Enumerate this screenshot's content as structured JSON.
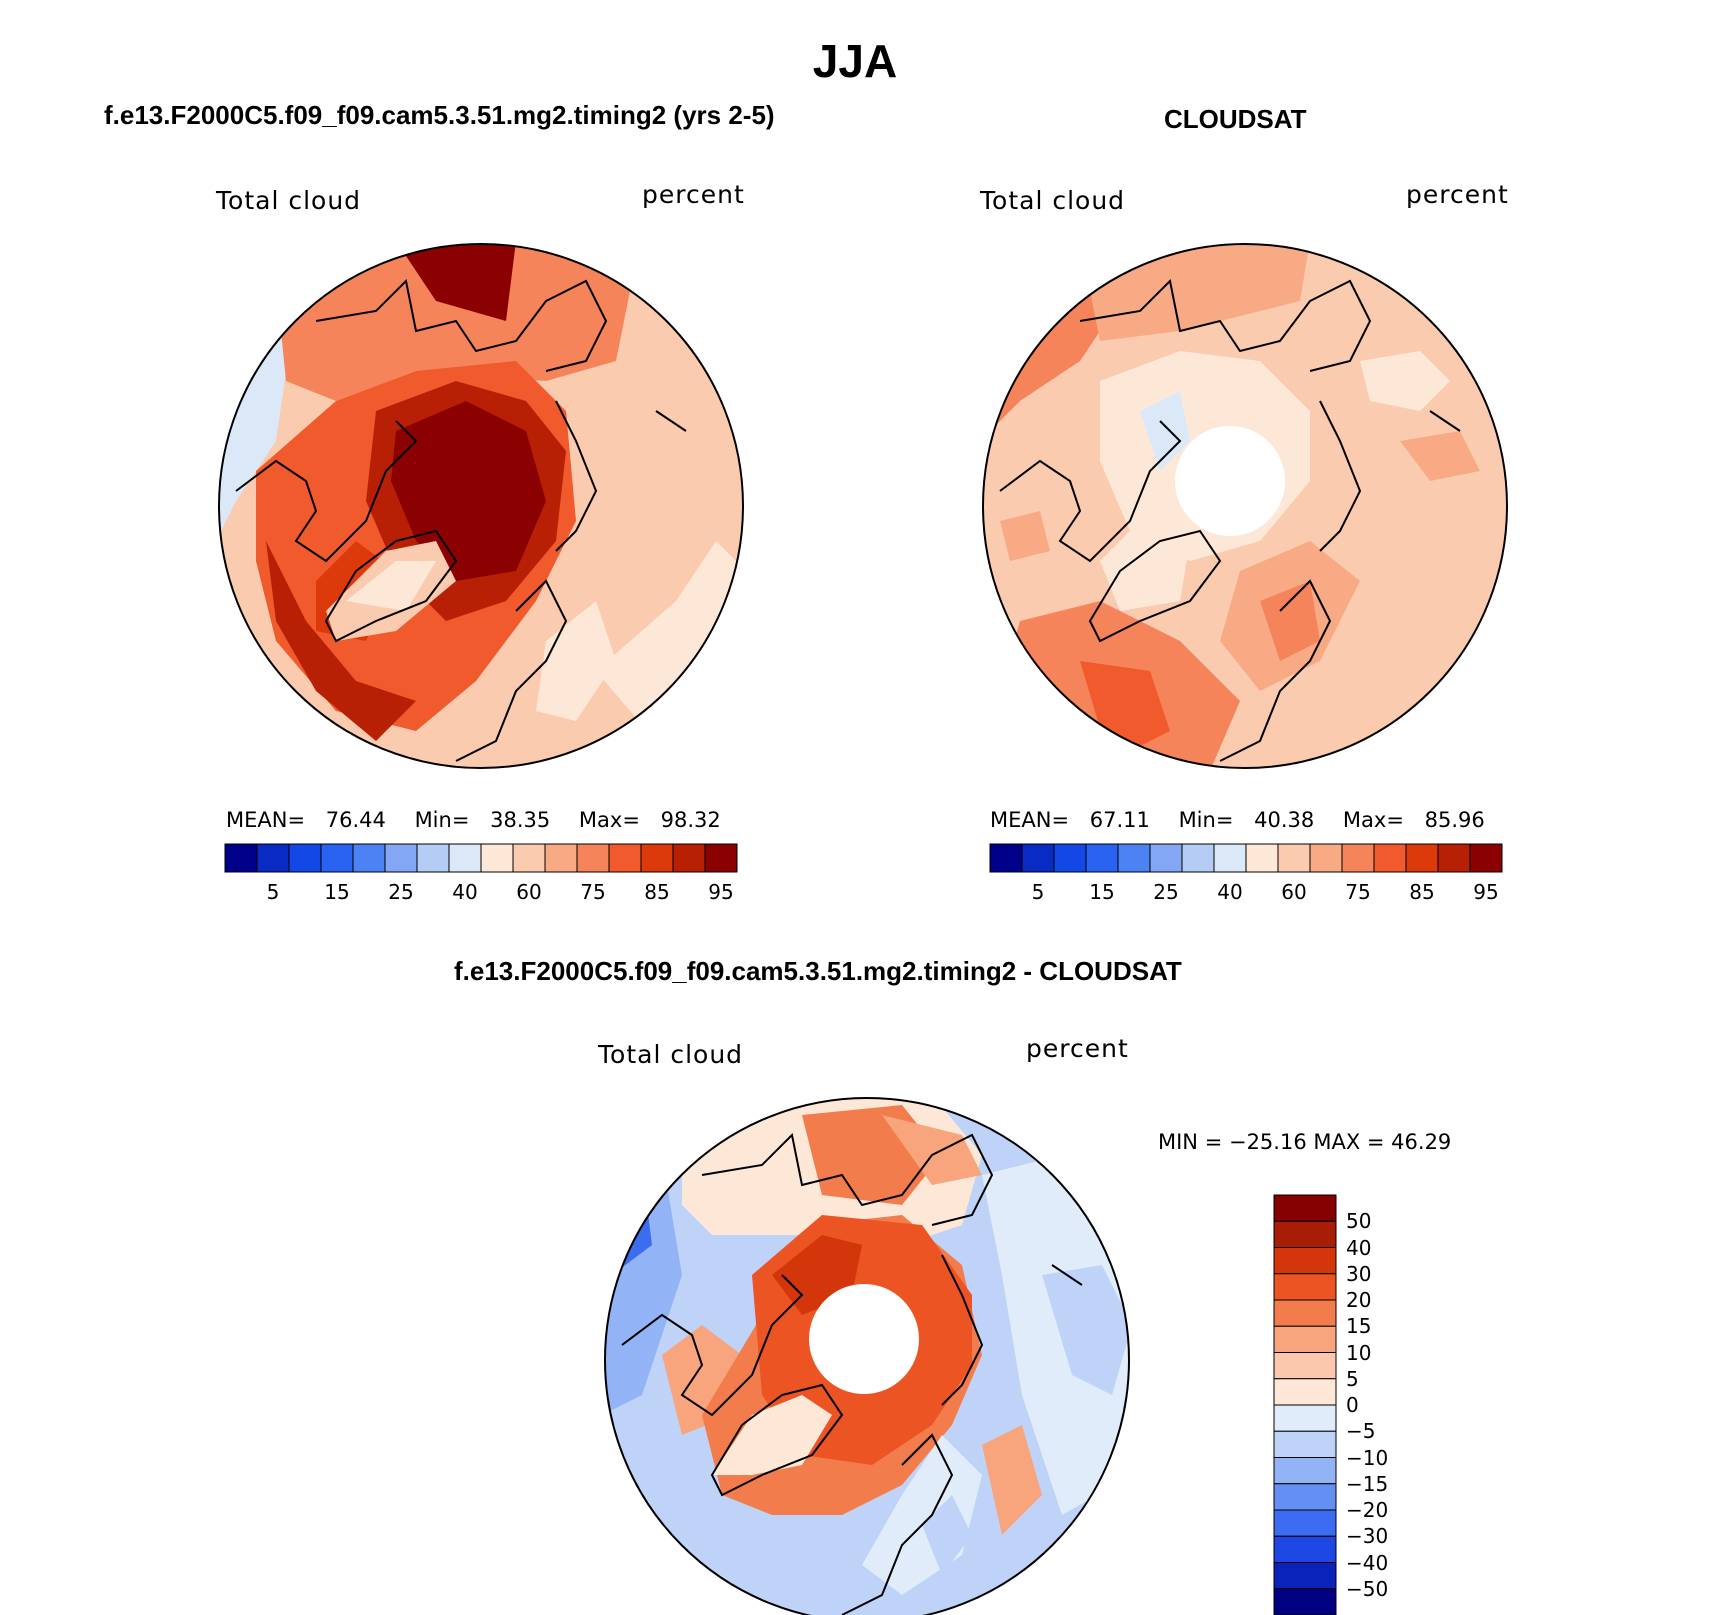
{
  "title": "JJA",
  "colors": {
    "abs_scale": [
      "#00008b",
      "#0a2ac4",
      "#1448e6",
      "#2a63f2",
      "#4d82f4",
      "#83a7f4",
      "#b5cdf5",
      "#dbe8f8",
      "#fde8d8",
      "#fbcbb0",
      "#f8aa85",
      "#f5845a",
      "#f05a2c",
      "#dd3a0c",
      "#b82006",
      "#8b0000"
    ],
    "diff_scale": [
      "#000080",
      "#0a24bb",
      "#1e48e3",
      "#3c6cf0",
      "#6490f3",
      "#92b3f5",
      "#bed3f7",
      "#e0ecf9",
      "#fde8d8",
      "#fbc8ad",
      "#f8a47c",
      "#f37c4d",
      "#ec5423",
      "#d4360b",
      "#a81d05",
      "#850000"
    ]
  },
  "panels": [
    {
      "subtitle": "f.e13.F2000C5.f09_f09.cam5.3.51.mg2.timing2 (yrs 2-5)",
      "left_label": "Total cloud",
      "right_label": "percent",
      "stats": {
        "mean_label": "MEAN=",
        "mean": "76.44",
        "min_label": "Min=",
        "min": "38.35",
        "max_label": "Max=",
        "max": "98.32"
      },
      "colorbar_ticks": [
        "5",
        "15",
        "25",
        "40",
        "60",
        "75",
        "85",
        "95"
      ]
    },
    {
      "subtitle": "CLOUDSAT",
      "left_label": "Total cloud",
      "right_label": "percent",
      "stats": {
        "mean_label": "MEAN=",
        "mean": "67.11",
        "min_label": "Min=",
        "min": "40.38",
        "max_label": "Max=",
        "max": "85.96"
      },
      "colorbar_ticks": [
        "5",
        "15",
        "25",
        "40",
        "60",
        "75",
        "85",
        "95"
      ]
    },
    {
      "subtitle": "f.e13.F2000C5.f09_f09.cam5.3.51.mg2.timing2 - CLOUDSAT",
      "left_label": "Total cloud",
      "right_label": "percent",
      "minmax": "MIN = −25.16 MAX =   46.29",
      "colorbar_ticks": [
        "50",
        "40",
        "30",
        "20",
        "15",
        "10",
        "5",
        "0",
        "−5",
        "−10",
        "−15",
        "−20",
        "−30",
        "−40",
        "−50"
      ]
    }
  ]
}
